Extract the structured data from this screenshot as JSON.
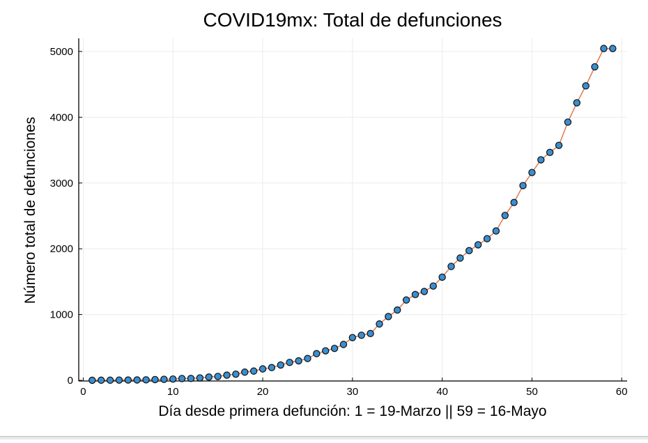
{
  "chart_data": {
    "type": "line",
    "title": "COVID19mx: Total de defunciones",
    "xlabel": "Día desde primera defunción: 1 = 19-Marzo || 59 = 16-Mayo",
    "ylabel": "Número total de defunciones",
    "xlim": [
      -0.5,
      60.6
    ],
    "ylim": [
      -10,
      5200
    ],
    "xticks": [
      0,
      10,
      20,
      30,
      40,
      50,
      60
    ],
    "yticks": [
      0,
      1000,
      2000,
      3000,
      4000,
      5000
    ],
    "grid": true,
    "legend": "none",
    "series": [
      {
        "line_color": "#e26f46",
        "marker_color": "#3a8fd0",
        "marker_edge": "#0d0d0d",
        "x": [
          1,
          2,
          3,
          4,
          5,
          6,
          7,
          8,
          9,
          10,
          11,
          12,
          13,
          14,
          15,
          16,
          17,
          18,
          19,
          20,
          21,
          22,
          23,
          24,
          25,
          26,
          27,
          28,
          29,
          30,
          31,
          32,
          33,
          34,
          35,
          36,
          37,
          38,
          39,
          40,
          41,
          42,
          43,
          44,
          45,
          46,
          47,
          48,
          49,
          50,
          51,
          52,
          53,
          54,
          55,
          56,
          57,
          58,
          59
        ],
        "y": [
          1,
          2,
          2,
          4,
          5,
          6,
          8,
          12,
          16,
          20,
          28,
          29,
          37,
          50,
          60,
          79,
          94,
          125,
          141,
          174,
          194,
          233,
          273,
          296,
          332,
          406,
          449,
          486,
          546,
          650,
          686,
          712,
          857,
          970,
          1069,
          1221,
          1305,
          1351,
          1434,
          1569,
          1732,
          1859,
          1972,
          2061,
          2154,
          2271,
          2507,
          2704,
          2961,
          3160,
          3353,
          3465,
          3573,
          3926,
          4220,
          4477,
          4767,
          5045,
          5045
        ]
      }
    ]
  }
}
